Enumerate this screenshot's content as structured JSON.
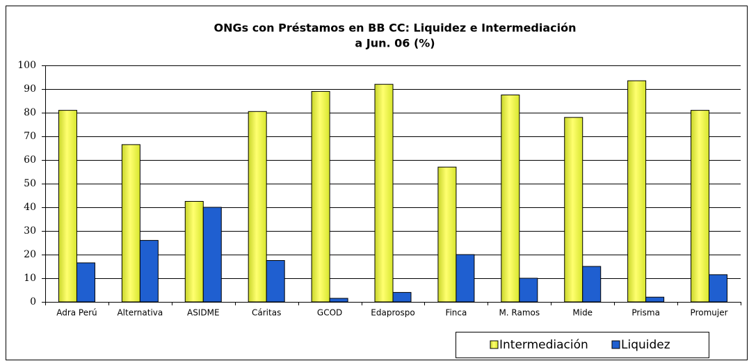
{
  "chart_data": {
    "type": "bar",
    "title": "ONGs con Préstamos en BB CC: Liquidez e  Intermediación",
    "subtitle": "a Jun. 06 (%)",
    "categories": [
      "Adra Perú",
      "Alternativa",
      "ASIDME",
      "Cáritas",
      "GCOD",
      "Edaprospo",
      "Finca",
      "M. Ramos",
      "Mide",
      "Prisma",
      "Promujer"
    ],
    "series": [
      {
        "name": "Intermediación",
        "color": "#e8f53a",
        "values": [
          81,
          66.5,
          42.5,
          80.5,
          89,
          92,
          57,
          87.5,
          78,
          93.5,
          81
        ]
      },
      {
        "name": "Liquidez",
        "color": "#1f5fd0",
        "values": [
          16.5,
          26,
          40,
          17.5,
          1.5,
          4,
          20,
          10,
          15,
          2,
          11.5
        ]
      }
    ],
    "ylim": [
      0,
      100
    ],
    "yticks": [
      0,
      10,
      20,
      30,
      40,
      50,
      60,
      70,
      80,
      90,
      100
    ],
    "grid": true,
    "legend": "bottom-right"
  }
}
